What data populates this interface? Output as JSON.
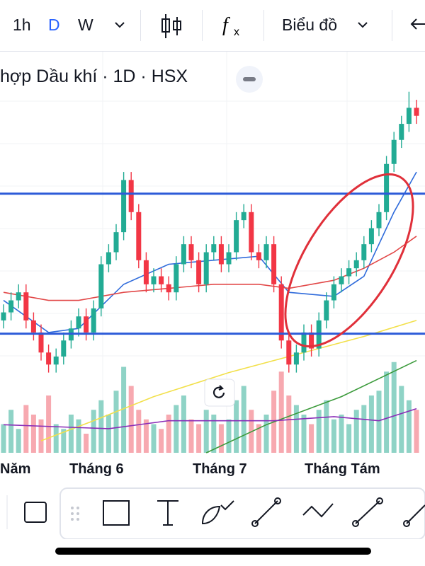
{
  "toolbar": {
    "intervals": [
      "1h",
      "D",
      "W"
    ],
    "chart_menu": "Biểu đồ"
  },
  "chart_data": {
    "type": "candlestick",
    "title": "hợp Dầu khí · 1D · HSX",
    "ylim": [
      0,
      100
    ],
    "volume_lim": [
      0,
      100
    ],
    "up_color": "#22ab94",
    "down_color": "#f23645",
    "up_volume_color": "#8fd3c6",
    "down_volume_color": "#f7a9b0",
    "candles": [
      [
        33,
        37,
        31,
        35
      ],
      [
        35,
        40,
        33,
        38
      ],
      [
        38,
        42,
        36,
        40
      ],
      [
        40,
        42,
        31,
        33
      ],
      [
        33,
        35,
        28,
        30
      ],
      [
        30,
        32,
        23,
        25
      ],
      [
        25,
        27,
        20,
        22
      ],
      [
        22,
        26,
        20,
        24
      ],
      [
        24,
        30,
        22,
        28
      ],
      [
        28,
        33,
        26,
        31
      ],
      [
        31,
        36,
        29,
        34
      ],
      [
        34,
        36,
        28,
        30
      ],
      [
        30,
        38,
        28,
        36
      ],
      [
        36,
        49,
        34,
        47
      ],
      [
        47,
        52,
        45,
        50
      ],
      [
        50,
        57,
        48,
        55
      ],
      [
        55,
        70,
        53,
        68
      ],
      [
        68,
        70,
        58,
        60
      ],
      [
        60,
        62,
        46,
        48
      ],
      [
        48,
        50,
        40,
        42
      ],
      [
        42,
        46,
        40,
        44
      ],
      [
        44,
        46,
        40,
        42
      ],
      [
        42,
        44,
        38,
        40
      ],
      [
        40,
        49,
        38,
        47
      ],
      [
        47,
        54,
        45,
        52
      ],
      [
        52,
        54,
        46,
        48
      ],
      [
        48,
        50,
        40,
        42
      ],
      [
        42,
        52,
        40,
        50
      ],
      [
        50,
        54,
        48,
        52
      ],
      [
        52,
        54,
        45,
        47
      ],
      [
        47,
        52,
        45,
        50
      ],
      [
        50,
        60,
        48,
        58
      ],
      [
        58,
        62,
        56,
        60
      ],
      [
        60,
        62,
        48,
        50
      ],
      [
        50,
        52,
        46,
        48
      ],
      [
        48,
        54,
        46,
        52
      ],
      [
        52,
        54,
        40,
        42
      ],
      [
        42,
        44,
        26,
        28
      ],
      [
        28,
        30,
        20,
        22
      ],
      [
        22,
        27,
        20,
        25
      ],
      [
        25,
        32,
        23,
        30
      ],
      [
        30,
        32,
        24,
        26
      ],
      [
        26,
        35,
        24,
        33
      ],
      [
        33,
        40,
        31,
        38
      ],
      [
        38,
        44,
        36,
        42
      ],
      [
        42,
        46,
        40,
        44
      ],
      [
        44,
        48,
        42,
        46
      ],
      [
        46,
        50,
        44,
        48
      ],
      [
        48,
        54,
        46,
        52
      ],
      [
        52,
        58,
        50,
        56
      ],
      [
        56,
        62,
        54,
        60
      ],
      [
        60,
        74,
        58,
        72
      ],
      [
        72,
        80,
        70,
        78
      ],
      [
        78,
        84,
        76,
        82
      ],
      [
        82,
        90,
        80,
        86
      ],
      [
        86,
        88,
        82,
        84
      ]
    ],
    "volumes": [
      30,
      45,
      25,
      50,
      40,
      35,
      60,
      30,
      25,
      40,
      35,
      20,
      45,
      55,
      40,
      65,
      90,
      70,
      45,
      35,
      30,
      25,
      40,
      50,
      60,
      35,
      30,
      45,
      40,
      30,
      35,
      55,
      70,
      45,
      30,
      40,
      65,
      85,
      60,
      50,
      40,
      30,
      45,
      55,
      35,
      40,
      30,
      45,
      50,
      60,
      65,
      85,
      95,
      70,
      55,
      45
    ],
    "hlines": [
      {
        "color": "#2d5bd8",
        "value": 64.6
      },
      {
        "color": "#2d5bd8",
        "value": 29.7
      }
    ],
    "series": [
      {
        "color": "#2f6bdb",
        "x": [
          0,
          6,
          10,
          16,
          22,
          28,
          34,
          38,
          44,
          48,
          52,
          55
        ],
        "values": [
          38,
          30,
          31,
          42,
          47,
          48,
          49,
          40,
          39,
          44,
          60,
          70
        ]
      },
      {
        "color": "#e24848",
        "x": [
          0,
          6,
          10,
          16,
          22,
          28,
          34,
          38,
          44,
          48,
          52,
          55
        ],
        "values": [
          40,
          38,
          38,
          40,
          41,
          42,
          42,
          41,
          43,
          46,
          50,
          54
        ]
      },
      {
        "color": "#f2e04a",
        "x": [
          5,
          12,
          20,
          30,
          40,
          48,
          55
        ],
        "values": [
          3,
          8,
          14,
          20,
          25,
          29,
          33
        ]
      },
      {
        "color": "#3a9a3a",
        "x": [
          27,
          35,
          45,
          55
        ],
        "values": [
          0,
          7,
          14,
          23
        ]
      },
      {
        "color": "#8a2db8",
        "x": [
          0,
          14,
          22,
          36,
          44,
          50,
          55
        ],
        "values": [
          7,
          6,
          8,
          8,
          9,
          8,
          11
        ]
      }
    ],
    "x_labels": [
      "Năm",
      "Tháng 6",
      "Tháng 7",
      "Tháng Tám"
    ]
  }
}
